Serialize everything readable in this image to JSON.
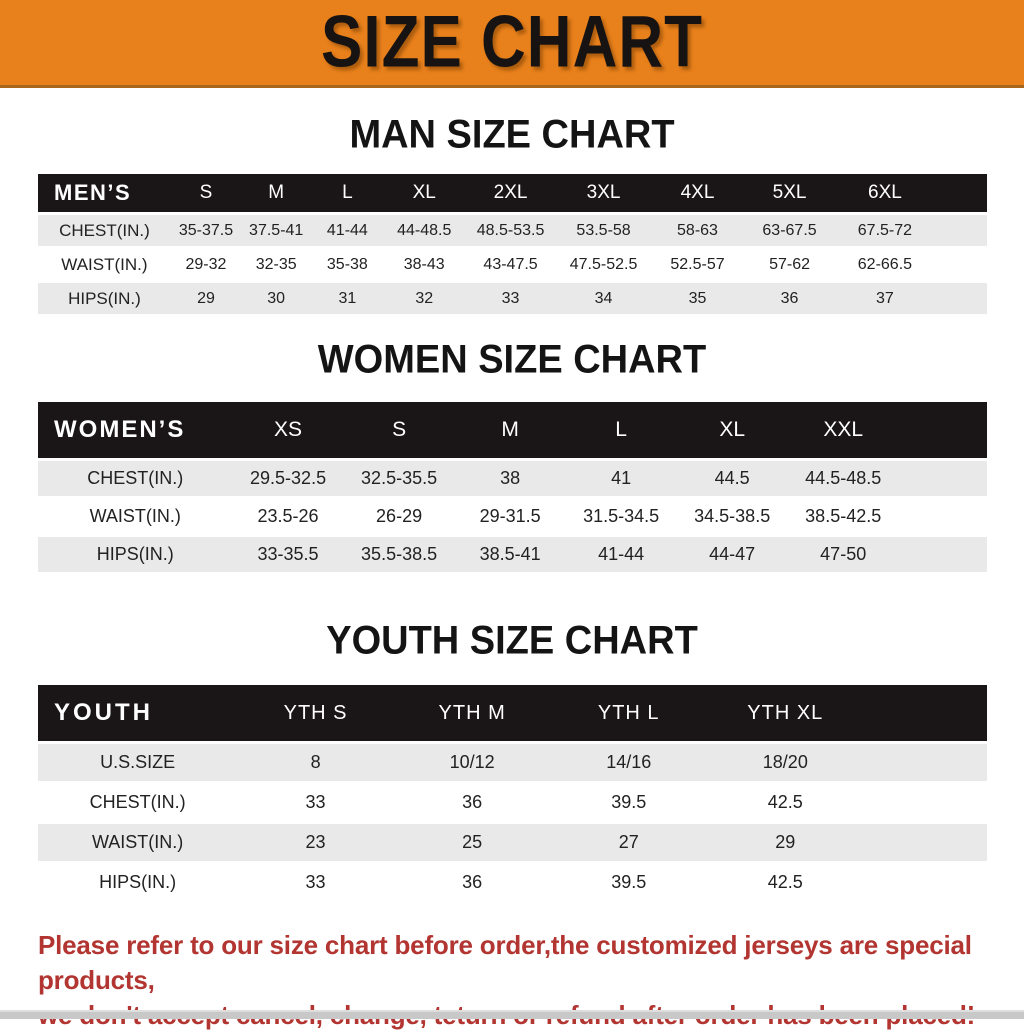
{
  "banner": {
    "title": "SIZE CHART",
    "bg_color": "#e8801b",
    "text_color": "#171312"
  },
  "sections": [
    {
      "title": "MAN SIZE CHART",
      "header_label": "MEN’S",
      "columns": [
        "S",
        "M",
        "L",
        "XL",
        "2XL",
        "3XL",
        "4XL",
        "5XL",
        "6XL"
      ],
      "rows": [
        {
          "label": "CHEST(IN.)",
          "values": [
            "35-37.5",
            "37.5-41",
            "41-44",
            "44-48.5",
            "48.5-53.5",
            "53.5-58",
            "58-63",
            "63-67.5",
            "67.5-72"
          ]
        },
        {
          "label": "WAIST(IN.)",
          "values": [
            "29-32",
            "32-35",
            "35-38",
            "38-43",
            "43-47.5",
            "47.5-52.5",
            "52.5-57",
            "57-62",
            "62-66.5"
          ]
        },
        {
          "label": "HIPS(IN.)",
          "values": [
            "29",
            "30",
            "31",
            "32",
            "33",
            "34",
            "35",
            "36",
            "37"
          ]
        }
      ]
    },
    {
      "title": "WOMEN SIZE CHART",
      "header_label": "WOMEN’S",
      "columns": [
        "XS",
        "S",
        "M",
        "L",
        "XL",
        "XXL"
      ],
      "rows": [
        {
          "label": "CHEST(IN.)",
          "values": [
            "29.5-32.5",
            "32.5-35.5",
            "38",
            "41",
            "44.5",
            "44.5-48.5"
          ]
        },
        {
          "label": "WAIST(IN.)",
          "values": [
            "23.5-26",
            "26-29",
            "29-31.5",
            "31.5-34.5",
            "34.5-38.5",
            "38.5-42.5"
          ]
        },
        {
          "label": "HIPS(IN.)",
          "values": [
            "33-35.5",
            "35.5-38.5",
            "38.5-41",
            "41-44",
            "44-47",
            "47-50"
          ]
        }
      ]
    },
    {
      "title": "YOUTH SIZE CHART",
      "header_label": "YOUTH",
      "columns": [
        "YTH S",
        "YTH M",
        "YTH L",
        "YTH XL"
      ],
      "rows": [
        {
          "label": "U.S.SIZE",
          "values": [
            "8",
            "10/12",
            "14/16",
            "18/20"
          ]
        },
        {
          "label": "CHEST(IN.)",
          "values": [
            "33",
            "36",
            "39.5",
            "42.5"
          ]
        },
        {
          "label": "WAIST(IN.)",
          "values": [
            "23",
            "25",
            "27",
            "29"
          ]
        },
        {
          "label": "HIPS(IN.)",
          "values": [
            "33",
            "36",
            "39.5",
            "42.5"
          ]
        }
      ]
    }
  ],
  "footer": {
    "line1": "Please refer to our size chart before order,the customized jerseys are special products,",
    "line2": "we don't accept cancel, change, teturn or refund after order has been placed!",
    "text_color": "#b23531"
  }
}
